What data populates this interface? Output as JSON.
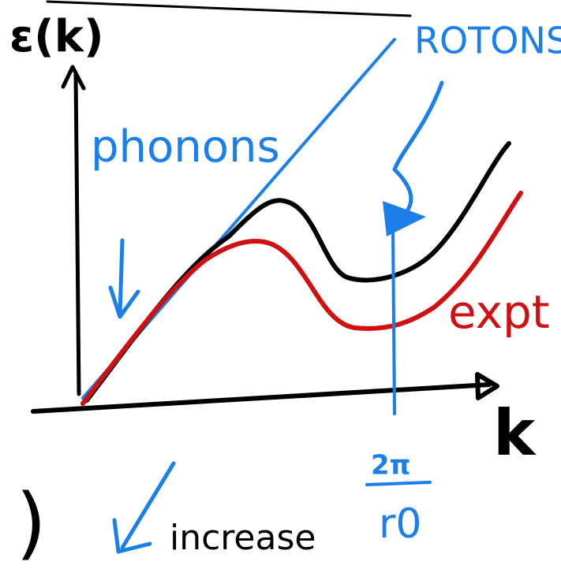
{
  "labels": {
    "energy_axis": "ε(k)",
    "momentum_axis": "k",
    "phonons": "phonons",
    "rotons": "ROTONS",
    "experiment": "expt",
    "roton_numerator": "2π",
    "roton_denominator": "r0",
    "increase": "increase",
    "paren": ")"
  }
}
